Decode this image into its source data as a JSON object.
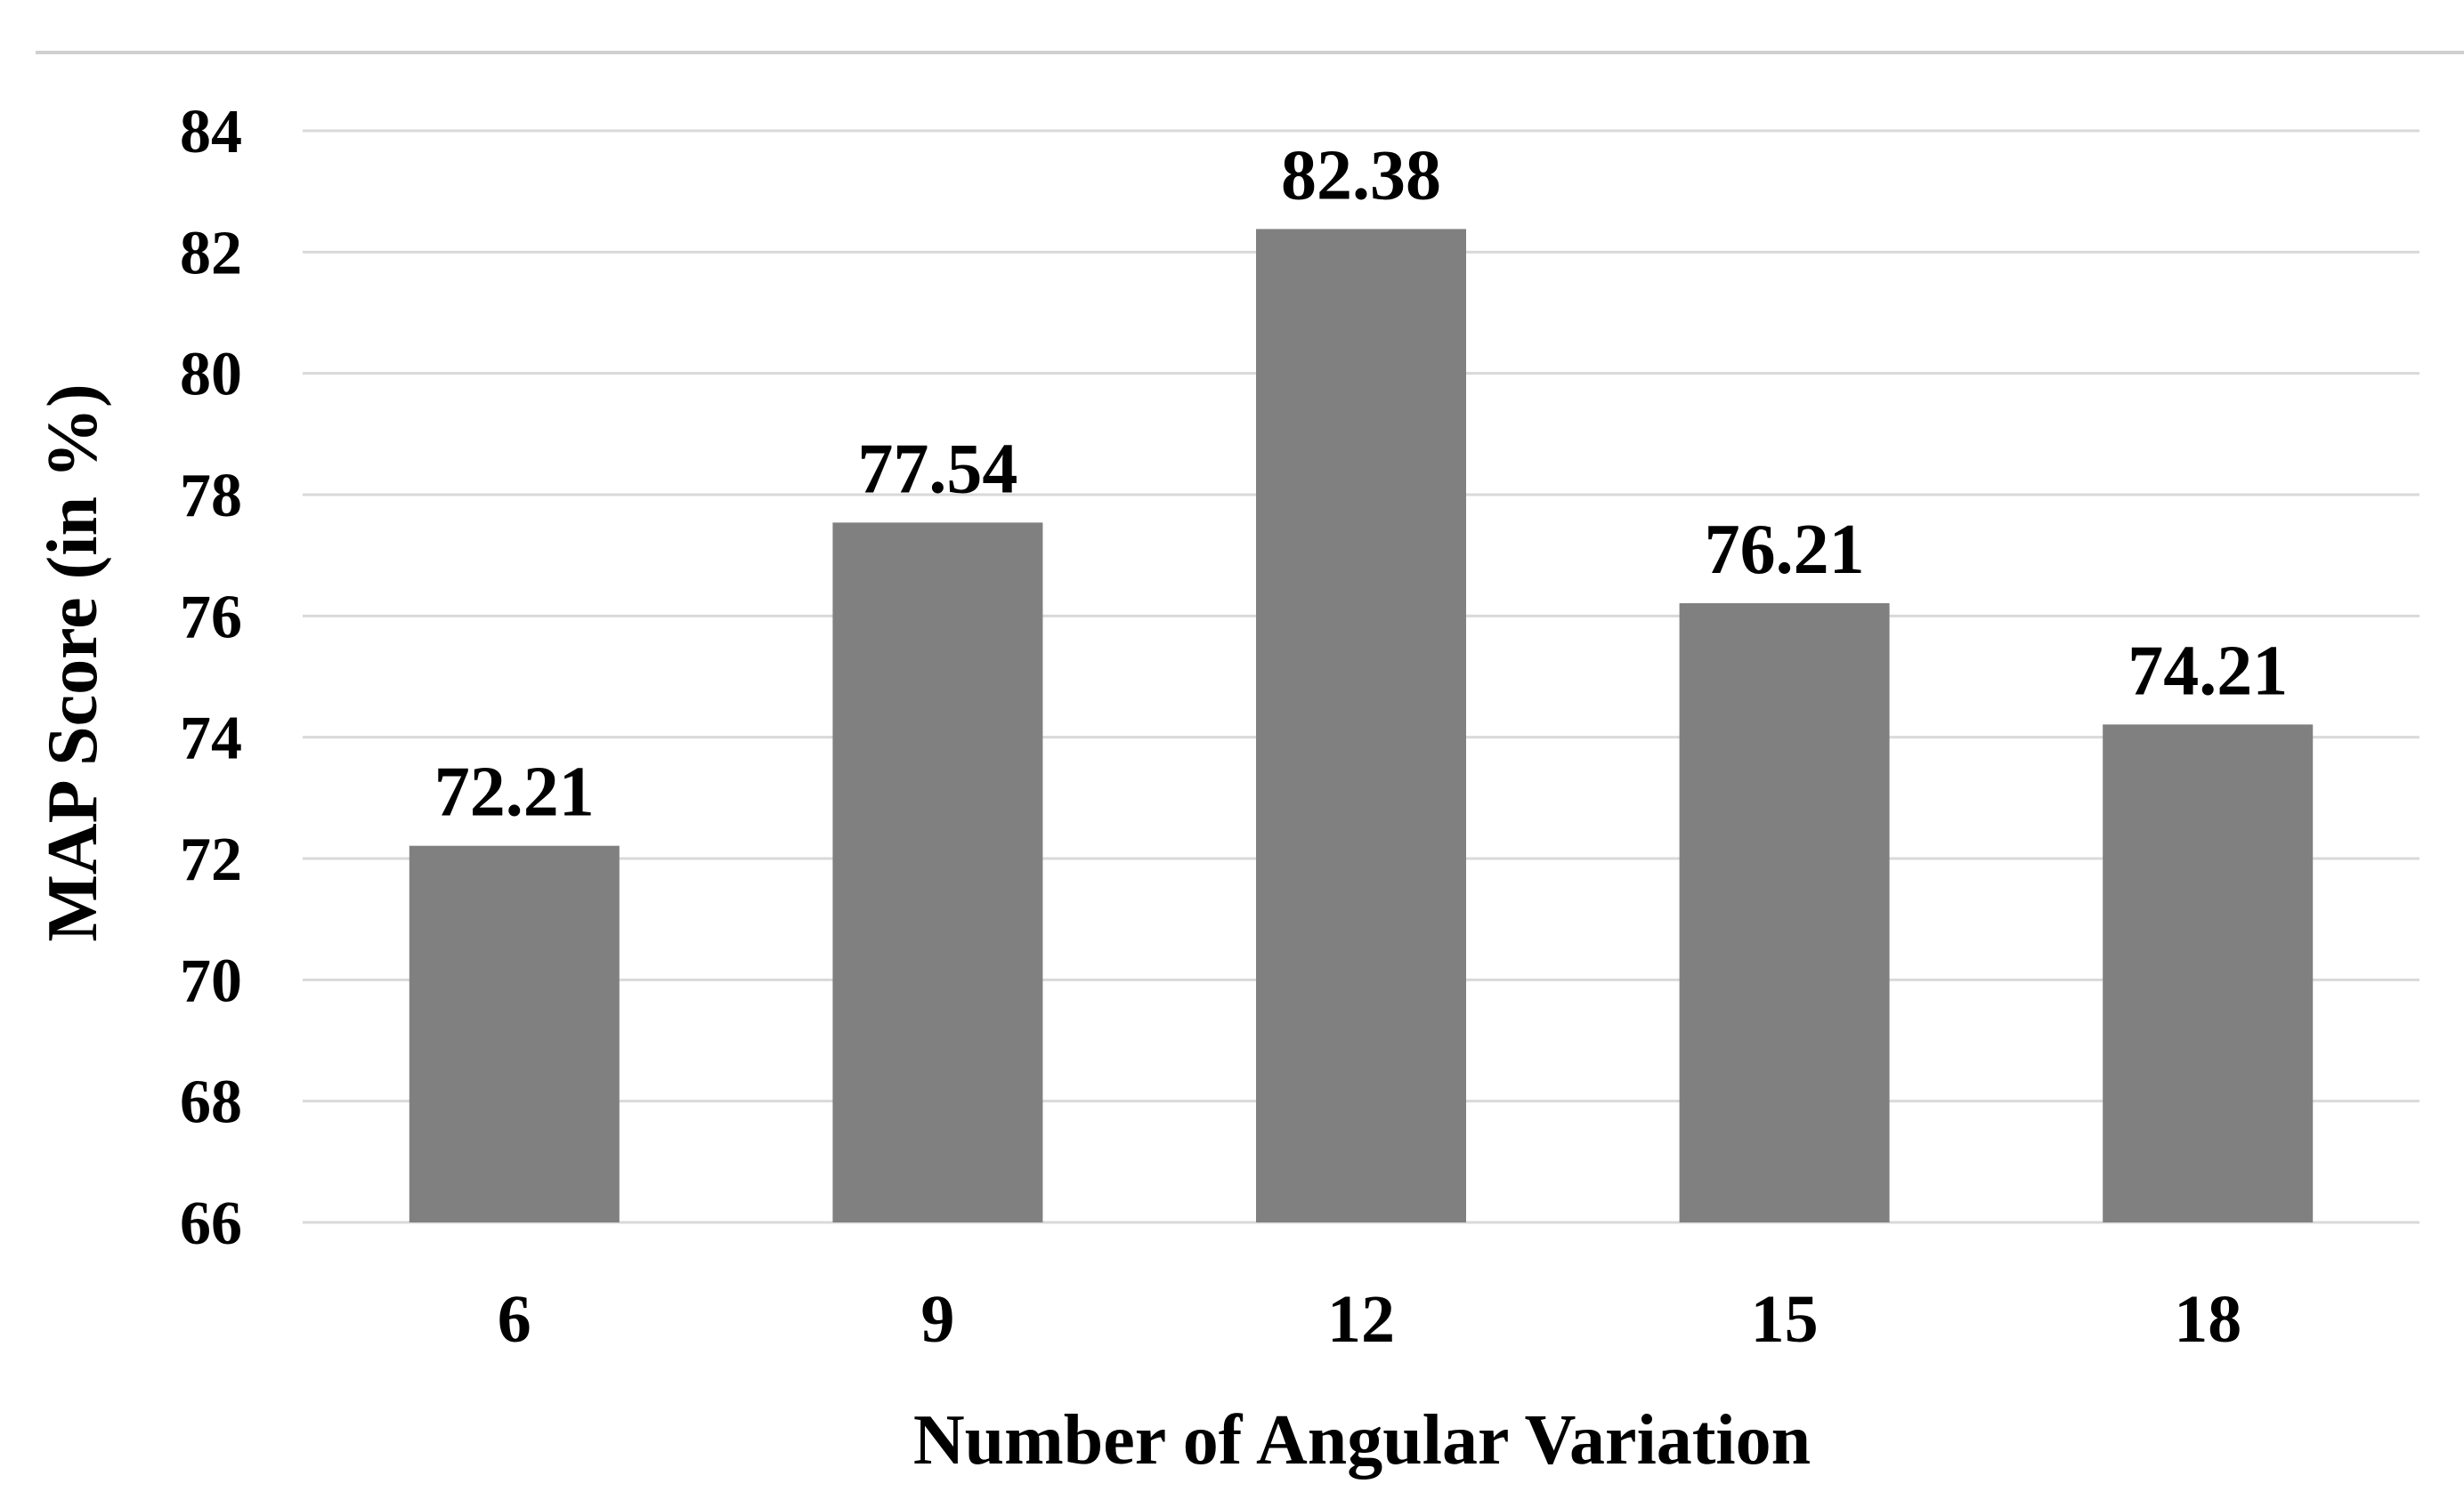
{
  "chart_data": {
    "type": "bar",
    "title": "",
    "xlabel": "Number of Angular Variation",
    "ylabel": "MAP Score (in %)",
    "categories": [
      "6",
      "9",
      "12",
      "15",
      "18"
    ],
    "values": [
      72.21,
      77.54,
      82.38,
      76.21,
      74.21
    ],
    "data_labels": [
      "72.21",
      "77.54",
      "82.38",
      "76.21",
      "74.21"
    ],
    "ylim": [
      66,
      84
    ],
    "yticks": [
      66,
      68,
      70,
      72,
      74,
      76,
      78,
      80,
      82,
      84
    ],
    "grid": true,
    "legend": "none",
    "colors": {
      "bar": "#808080",
      "grid": "#d9d9d9",
      "frame_top": "#d0d0d0",
      "text": "#000000"
    }
  }
}
